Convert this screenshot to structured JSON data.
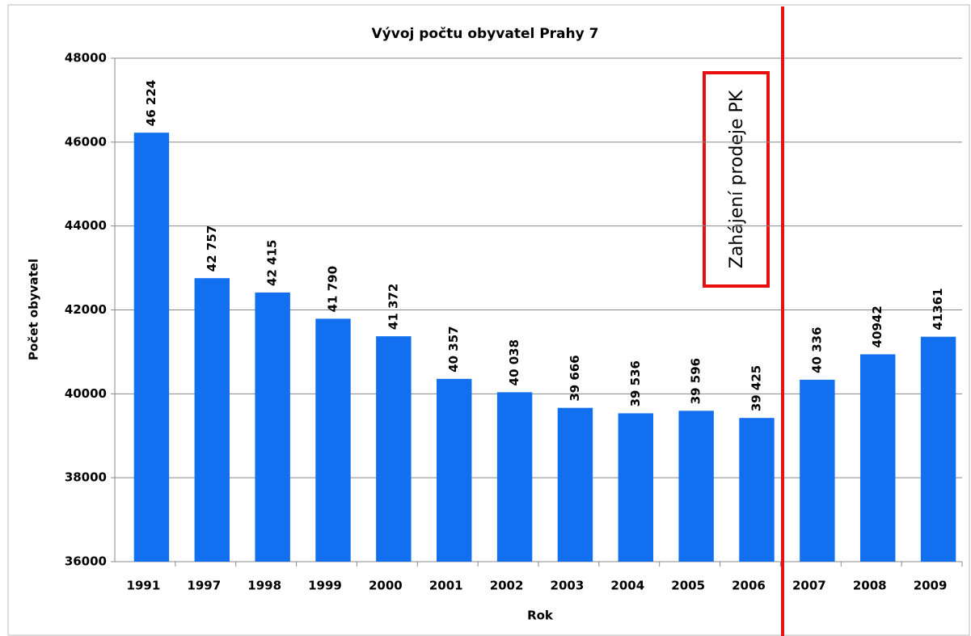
{
  "chart_data": {
    "type": "bar",
    "title": "Vývoj počtu obyvatel Prahy 7",
    "x_label": "Rok",
    "y_label": "Počet obyvatel",
    "categories": [
      "1991",
      "1997",
      "1998",
      "1999",
      "2000",
      "2001",
      "2002",
      "2003",
      "2004",
      "2005",
      "2006",
      "2007",
      "2008",
      "2009"
    ],
    "values": [
      46224,
      42757,
      42415,
      41790,
      41372,
      40357,
      40038,
      39666,
      39536,
      39596,
      39425,
      40336,
      40942,
      41361
    ],
    "value_labels": [
      "46 224",
      "42 757",
      "42 415",
      "41 790",
      "41 372",
      "40 357",
      "40 038",
      "39 666",
      "39 536",
      "39 596",
      "39 425",
      "40 336",
      "40942",
      "41361"
    ],
    "color": "#1270f0",
    "ylim": [
      36000,
      48000
    ],
    "yticks": [
      36000,
      38000,
      40000,
      42000,
      44000,
      46000,
      48000
    ],
    "grid": true,
    "annotation": "Zahájení prodeje PK"
  }
}
